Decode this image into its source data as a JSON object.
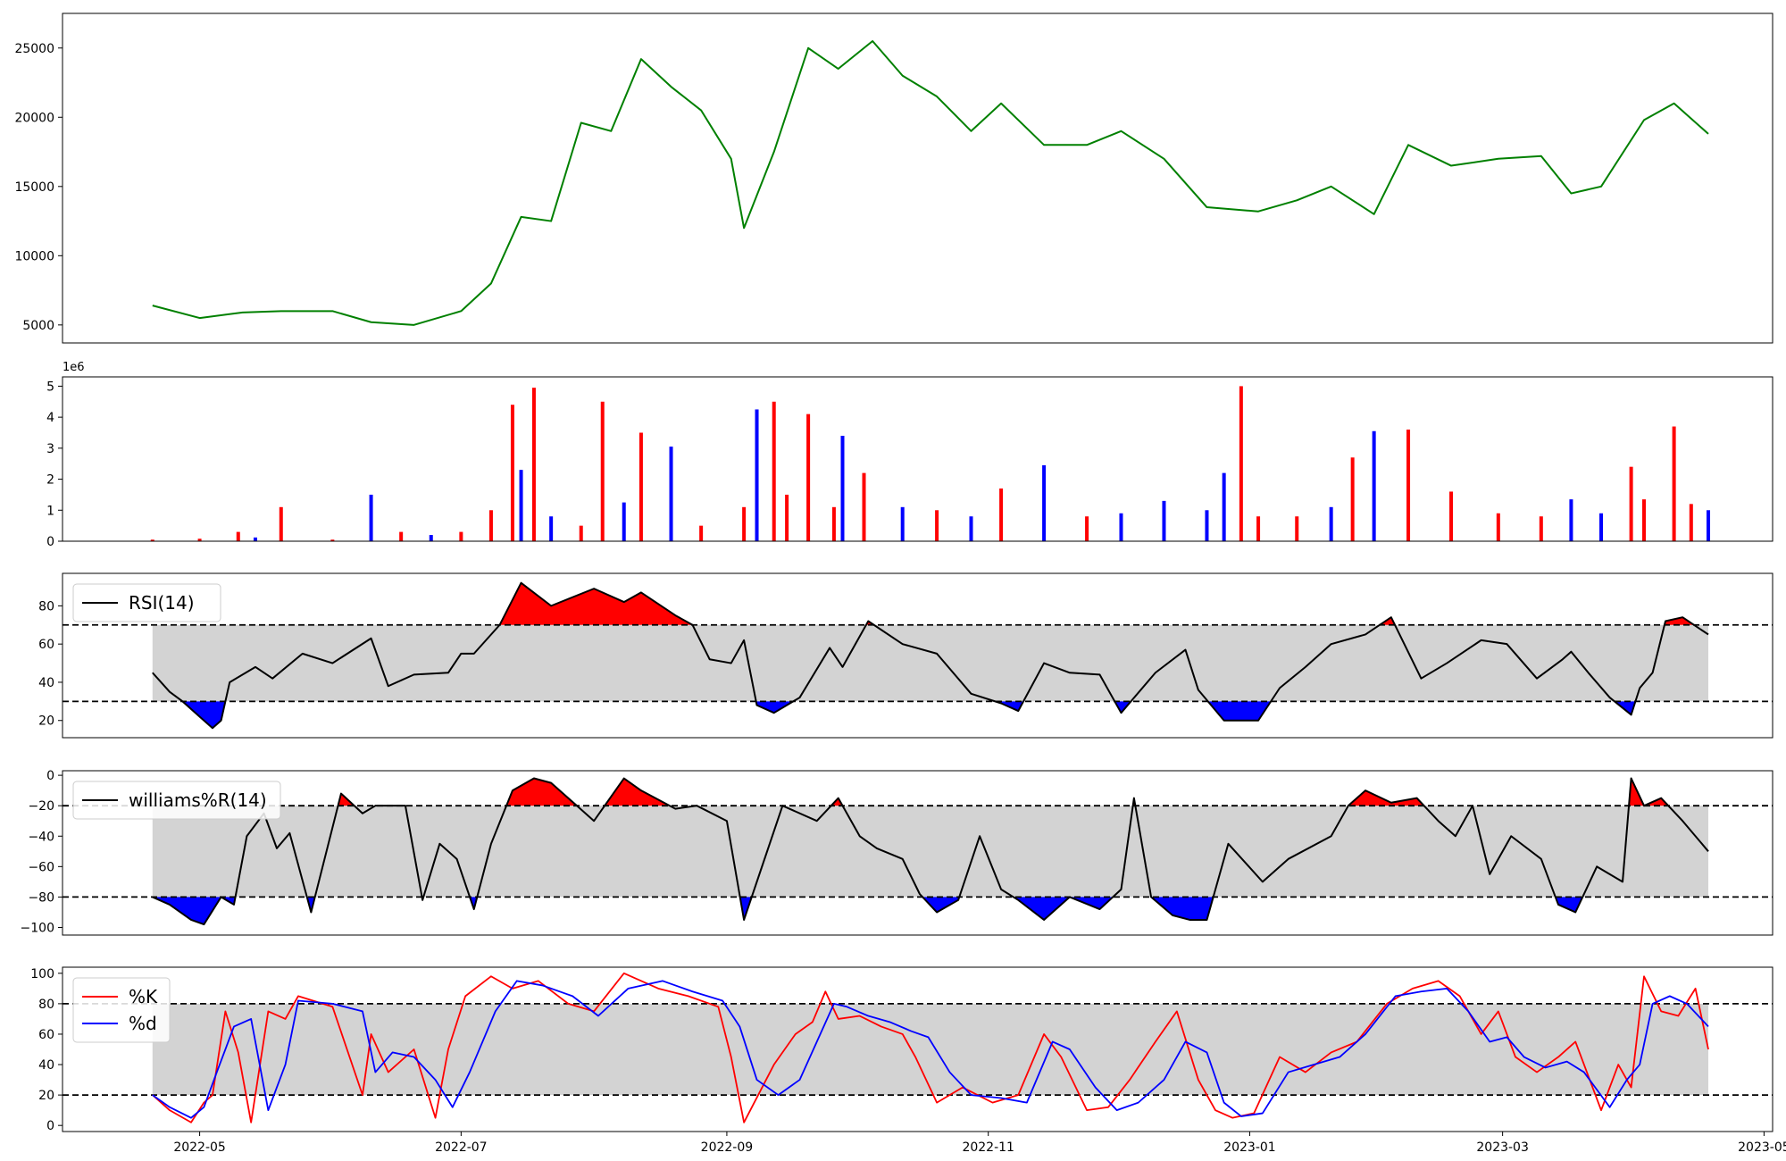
{
  "figure": {
    "background": "#ffffff",
    "thresh_fill": "#d3d3d3"
  },
  "chart_data": [
    {
      "id": "price",
      "type": "line",
      "color": "#008000",
      "ylim": [
        3700,
        27500
      ],
      "yticks": [
        5000,
        10000,
        15000,
        20000,
        25000
      ],
      "ytick_labels": [
        "5000",
        "10000",
        "15000",
        "20000",
        "25000"
      ],
      "x": [
        "2022-04-20",
        "2022-05-01",
        "2022-05-11",
        "2022-05-20",
        "2022-06-01",
        "2022-06-10",
        "2022-06-20",
        "2022-07-01",
        "2022-07-08",
        "2022-07-15",
        "2022-07-22",
        "2022-07-29",
        "2022-08-05",
        "2022-08-12",
        "2022-08-19",
        "2022-08-26",
        "2022-09-02",
        "2022-09-05",
        "2022-09-12",
        "2022-09-20",
        "2022-09-27",
        "2022-10-05",
        "2022-10-12",
        "2022-10-20",
        "2022-10-28",
        "2022-11-04",
        "2022-11-14",
        "2022-11-24",
        "2022-12-02",
        "2022-12-12",
        "2022-12-22",
        "2023-01-03",
        "2023-01-12",
        "2023-01-20",
        "2023-01-30",
        "2023-02-07",
        "2023-02-17",
        "2023-02-28",
        "2023-03-10",
        "2023-03-17",
        "2023-03-24",
        "2023-04-03",
        "2023-04-10",
        "2023-04-18"
      ],
      "y": [
        6400,
        5500,
        5900,
        6000,
        6000,
        5200,
        5000,
        6000,
        8000,
        12800,
        12500,
        19600,
        19000,
        24200,
        22200,
        20500,
        17000,
        12000,
        17500,
        25000,
        23500,
        25500,
        23000,
        21500,
        19000,
        21000,
        18000,
        18000,
        19000,
        17000,
        13500,
        13200,
        14000,
        15000,
        13000,
        18000,
        16500,
        17000,
        17200,
        14500,
        15000,
        19800,
        21000,
        18800
      ]
    },
    {
      "id": "volume",
      "type": "bar",
      "ylim": [
        0,
        5300000
      ],
      "yticks": [
        0,
        1000000,
        2000000,
        3000000,
        4000000,
        5000000
      ],
      "ytick_labels": [
        "0",
        "1",
        "2",
        "3",
        "4",
        "5"
      ],
      "offset_label": "1e6",
      "up_color": "#ff0000",
      "down_color": "#0000ff",
      "x": [
        "2022-04-20",
        "2022-05-01",
        "2022-05-10",
        "2022-05-14",
        "2022-05-20",
        "2022-06-01",
        "2022-06-10",
        "2022-06-17",
        "2022-06-24",
        "2022-07-01",
        "2022-07-08",
        "2022-07-13",
        "2022-07-15",
        "2022-07-18",
        "2022-07-22",
        "2022-07-29",
        "2022-08-03",
        "2022-08-08",
        "2022-08-12",
        "2022-08-19",
        "2022-08-26",
        "2022-09-05",
        "2022-09-08",
        "2022-09-12",
        "2022-09-15",
        "2022-09-20",
        "2022-09-26",
        "2022-09-28",
        "2022-10-03",
        "2022-10-12",
        "2022-10-20",
        "2022-10-28",
        "2022-11-04",
        "2022-11-14",
        "2022-11-24",
        "2022-12-02",
        "2022-12-12",
        "2022-12-22",
        "2022-12-26",
        "2022-12-30",
        "2023-01-03",
        "2023-01-12",
        "2023-01-20",
        "2023-01-25",
        "2023-01-30",
        "2023-02-07",
        "2023-02-17",
        "2023-02-28",
        "2023-03-10",
        "2023-03-17",
        "2023-03-24",
        "2023-03-31",
        "2023-04-03",
        "2023-04-10",
        "2023-04-14",
        "2023-04-18"
      ],
      "values": [
        50000,
        80000,
        300000,
        120000,
        1100000,
        50000,
        1500000,
        300000,
        200000,
        300000,
        1000000,
        4400000,
        2300000,
        4950000,
        800000,
        500000,
        4500000,
        1250000,
        3500000,
        3050000,
        500000,
        1100000,
        4250000,
        4500000,
        1500000,
        4100000,
        1100000,
        3400000,
        2200000,
        1100000,
        1000000,
        800000,
        1700000,
        2450000,
        800000,
        900000,
        1300000,
        1000000,
        2200000,
        5000000,
        800000,
        800000,
        1100000,
        2700000,
        3550000,
        3600000,
        1600000,
        900000,
        800000,
        1350000,
        900000,
        2400000,
        1350000,
        3700000,
        1200000,
        1000000
      ],
      "up": [
        true,
        true,
        true,
        false,
        true,
        true,
        false,
        true,
        false,
        true,
        true,
        true,
        false,
        true,
        false,
        true,
        true,
        false,
        true,
        false,
        true,
        true,
        false,
        true,
        true,
        true,
        true,
        false,
        true,
        false,
        true,
        false,
        true,
        false,
        true,
        false,
        false,
        false,
        false,
        true,
        true,
        true,
        false,
        true,
        false,
        true,
        true,
        true,
        true,
        false,
        false,
        true,
        true,
        true,
        true,
        false
      ]
    },
    {
      "id": "rsi",
      "type": "line",
      "color": "#000000",
      "legend": "RSI(14)",
      "ylim": [
        11,
        97
      ],
      "yticks": [
        20,
        40,
        60,
        80
      ],
      "ytick_labels": [
        "20",
        "40",
        "60",
        "80"
      ],
      "upper": 70,
      "lower": 30,
      "x": [
        "2022-04-20",
        "2022-04-24",
        "2022-04-27",
        "2022-05-01",
        "2022-05-04",
        "2022-05-06",
        "2022-05-08",
        "2022-05-14",
        "2022-05-18",
        "2022-05-25",
        "2022-06-01",
        "2022-06-10",
        "2022-06-14",
        "2022-06-20",
        "2022-06-28",
        "2022-07-01",
        "2022-07-04",
        "2022-07-10",
        "2022-07-15",
        "2022-07-22",
        "2022-08-01",
        "2022-08-08",
        "2022-08-12",
        "2022-08-20",
        "2022-08-24",
        "2022-08-28",
        "2022-09-02",
        "2022-09-05",
        "2022-09-08",
        "2022-09-12",
        "2022-09-18",
        "2022-09-25",
        "2022-09-28",
        "2022-10-04",
        "2022-10-12",
        "2022-10-20",
        "2022-10-28",
        "2022-11-04",
        "2022-11-08",
        "2022-11-14",
        "2022-11-20",
        "2022-11-27",
        "2022-12-02",
        "2022-12-10",
        "2022-12-17",
        "2022-12-20",
        "2022-12-26",
        "2023-01-03",
        "2023-01-08",
        "2023-01-14",
        "2023-01-20",
        "2023-01-28",
        "2023-02-03",
        "2023-02-10",
        "2023-02-16",
        "2023-02-24",
        "2023-03-02",
        "2023-03-09",
        "2023-03-15",
        "2023-03-17",
        "2023-03-21",
        "2023-03-26",
        "2023-03-31",
        "2023-04-02",
        "2023-04-05",
        "2023-04-08",
        "2023-04-12",
        "2023-04-18"
      ],
      "y": [
        45,
        35,
        30,
        22,
        16,
        20,
        40,
        48,
        42,
        55,
        50,
        63,
        38,
        44,
        45,
        55,
        55,
        70,
        92,
        80,
        89,
        82,
        87,
        75,
        70,
        52,
        50,
        62,
        28,
        24,
        32,
        58,
        48,
        72,
        60,
        55,
        34,
        29,
        25,
        50,
        45,
        44,
        24,
        45,
        57,
        36,
        20,
        20,
        37,
        48,
        60,
        65,
        74,
        42,
        50,
        62,
        60,
        42,
        52,
        56,
        45,
        32,
        23,
        37,
        45,
        72,
        74,
        65
      ]
    },
    {
      "id": "williams",
      "type": "line",
      "color": "#000000",
      "legend": "williams%R(14)",
      "ylim": [
        -105,
        3
      ],
      "yticks": [
        -100,
        -80,
        -60,
        -40,
        -20,
        0
      ],
      "ytick_labels": [
        "−100",
        "−80",
        "−60",
        "−40",
        "−20",
        "0"
      ],
      "upper": -20,
      "lower": -80,
      "x": [
        "2022-04-20",
        "2022-04-24",
        "2022-04-29",
        "2022-05-02",
        "2022-05-06",
        "2022-05-09",
        "2022-05-12",
        "2022-05-16",
        "2022-05-19",
        "2022-05-22",
        "2022-05-27",
        "2022-06-03",
        "2022-06-08",
        "2022-06-11",
        "2022-06-18",
        "2022-06-22",
        "2022-06-26",
        "2022-06-30",
        "2022-07-04",
        "2022-07-08",
        "2022-07-13",
        "2022-07-18",
        "2022-07-22",
        "2022-07-28",
        "2022-08-01",
        "2022-08-08",
        "2022-08-12",
        "2022-08-20",
        "2022-08-25",
        "2022-09-01",
        "2022-09-05",
        "2022-09-08",
        "2022-09-14",
        "2022-09-22",
        "2022-09-27",
        "2022-10-02",
        "2022-10-06",
        "2022-10-12",
        "2022-10-16",
        "2022-10-20",
        "2022-10-25",
        "2022-10-30",
        "2022-11-04",
        "2022-11-08",
        "2022-11-14",
        "2022-11-20",
        "2022-11-27",
        "2022-12-02",
        "2022-12-05",
        "2022-12-09",
        "2022-12-14",
        "2022-12-18",
        "2022-12-22",
        "2022-12-27",
        "2023-01-04",
        "2023-01-10",
        "2023-01-20",
        "2023-01-24",
        "2023-01-28",
        "2023-02-03",
        "2023-02-09",
        "2023-02-14",
        "2023-02-18",
        "2023-02-22",
        "2023-02-26",
        "2023-03-03",
        "2023-03-10",
        "2023-03-14",
        "2023-03-18",
        "2023-03-23",
        "2023-03-29",
        "2023-03-31",
        "2023-04-03",
        "2023-04-07",
        "2023-04-12",
        "2023-04-18"
      ],
      "y": [
        -80,
        -85,
        -95,
        -98,
        -80,
        -85,
        -40,
        -25,
        -48,
        -38,
        -90,
        -12,
        -25,
        -20,
        -20,
        -82,
        -45,
        -55,
        -88,
        -45,
        -10,
        -2,
        -5,
        -20,
        -30,
        -2,
        -10,
        -22,
        -20,
        -30,
        -95,
        -70,
        -20,
        -30,
        -15,
        -40,
        -48,
        -55,
        -78,
        -90,
        -82,
        -40,
        -75,
        -82,
        -95,
        -80,
        -88,
        -75,
        -15,
        -80,
        -92,
        -95,
        -95,
        -45,
        -70,
        -55,
        -40,
        -20,
        -10,
        -18,
        -15,
        -30,
        -40,
        -20,
        -65,
        -40,
        -55,
        -85,
        -90,
        -60,
        -70,
        -2,
        -20,
        -15,
        -30,
        -50
      ]
    },
    {
      "id": "stochastic",
      "type": "line",
      "ylim": [
        -4,
        104
      ],
      "yticks": [
        0,
        20,
        40,
        60,
        80,
        100
      ],
      "ytick_labels": [
        "0",
        "20",
        "40",
        "60",
        "80",
        "100"
      ],
      "upper": 80,
      "lower": 20,
      "series": [
        {
          "name": "%K",
          "color": "#ff0000",
          "x": [
            "2022-04-20",
            "2022-04-24",
            "2022-04-29",
            "2022-05-02",
            "2022-05-04",
            "2022-05-07",
            "2022-05-10",
            "2022-05-13",
            "2022-05-17",
            "2022-05-21",
            "2022-05-24",
            "2022-06-01",
            "2022-06-08",
            "2022-06-10",
            "2022-06-14",
            "2022-06-20",
            "2022-06-25",
            "2022-06-28",
            "2022-07-02",
            "2022-07-08",
            "2022-07-13",
            "2022-07-19",
            "2022-07-26",
            "2022-08-01",
            "2022-08-08",
            "2022-08-16",
            "2022-08-23",
            "2022-08-30",
            "2022-09-02",
            "2022-09-05",
            "2022-09-12",
            "2022-09-17",
            "2022-09-21",
            "2022-09-24",
            "2022-09-27",
            "2022-10-02",
            "2022-10-07",
            "2022-10-12",
            "2022-10-15",
            "2022-10-20",
            "2022-10-26",
            "2022-11-02",
            "2022-11-08",
            "2022-11-14",
            "2022-11-18",
            "2022-11-24",
            "2022-11-29",
            "2022-12-04",
            "2022-12-10",
            "2022-12-15",
            "2022-12-20",
            "2022-12-24",
            "2022-12-28",
            "2023-01-02",
            "2023-01-08",
            "2023-01-14",
            "2023-01-20",
            "2023-01-26",
            "2023-02-02",
            "2023-02-08",
            "2023-02-14",
            "2023-02-19",
            "2023-02-24",
            "2023-02-28",
            "2023-03-04",
            "2023-03-09",
            "2023-03-14",
            "2023-03-18",
            "2023-03-24",
            "2023-03-28",
            "2023-03-31",
            "2023-04-03",
            "2023-04-07",
            "2023-04-11",
            "2023-04-15",
            "2023-04-18"
          ],
          "y": [
            20,
            10,
            2,
            15,
            20,
            75,
            48,
            2,
            75,
            70,
            85,
            78,
            20,
            60,
            35,
            50,
            5,
            50,
            85,
            98,
            90,
            95,
            80,
            75,
            100,
            90,
            85,
            78,
            45,
            2,
            40,
            60,
            68,
            88,
            70,
            72,
            65,
            60,
            45,
            15,
            25,
            15,
            20,
            60,
            45,
            10,
            12,
            30,
            55,
            75,
            30,
            10,
            5,
            8,
            45,
            35,
            48,
            55,
            80,
            90,
            95,
            85,
            60,
            75,
            45,
            35,
            45,
            55,
            10,
            40,
            25,
            98,
            75,
            72,
            90,
            50
          ]
        },
        {
          "name": "%d",
          "color": "#0000ff",
          "x": [
            "2022-04-20",
            "2022-04-24",
            "2022-04-29",
            "2022-05-02",
            "2022-05-05",
            "2022-05-09",
            "2022-05-13",
            "2022-05-17",
            "2022-05-21",
            "2022-05-24",
            "2022-06-01",
            "2022-06-08",
            "2022-06-11",
            "2022-06-15",
            "2022-06-20",
            "2022-06-25",
            "2022-06-29",
            "2022-07-03",
            "2022-07-09",
            "2022-07-14",
            "2022-07-20",
            "2022-07-27",
            "2022-08-02",
            "2022-08-09",
            "2022-08-17",
            "2022-08-24",
            "2022-08-31",
            "2022-09-04",
            "2022-09-08",
            "2022-09-13",
            "2022-09-18",
            "2022-09-22",
            "2022-09-26",
            "2022-09-29",
            "2022-10-04",
            "2022-10-09",
            "2022-10-14",
            "2022-10-18",
            "2022-10-23",
            "2022-10-28",
            "2022-11-04",
            "2022-11-10",
            "2022-11-16",
            "2022-11-20",
            "2022-11-26",
            "2022-12-01",
            "2022-12-06",
            "2022-12-12",
            "2022-12-17",
            "2022-12-22",
            "2022-12-26",
            "2022-12-30",
            "2023-01-04",
            "2023-01-10",
            "2023-01-16",
            "2023-01-22",
            "2023-01-28",
            "2023-02-04",
            "2023-02-10",
            "2023-02-16",
            "2023-02-21",
            "2023-02-26",
            "2023-03-02",
            "2023-03-06",
            "2023-03-11",
            "2023-03-16",
            "2023-03-20",
            "2023-03-26",
            "2023-03-30",
            "2023-04-02",
            "2023-04-05",
            "2023-04-09",
            "2023-04-13",
            "2023-04-18"
          ],
          "y": [
            20,
            12,
            5,
            12,
            35,
            65,
            70,
            10,
            40,
            82,
            80,
            75,
            35,
            48,
            45,
            30,
            12,
            35,
            75,
            95,
            92,
            85,
            72,
            90,
            95,
            88,
            82,
            65,
            30,
            20,
            30,
            55,
            80,
            78,
            72,
            68,
            62,
            58,
            35,
            20,
            18,
            15,
            55,
            50,
            25,
            10,
            15,
            30,
            55,
            48,
            15,
            6,
            8,
            35,
            40,
            45,
            60,
            85,
            88,
            90,
            75,
            55,
            58,
            45,
            38,
            42,
            35,
            12,
            30,
            40,
            80,
            85,
            80,
            65
          ]
        }
      ]
    }
  ],
  "x_axis": {
    "min": "2022-03-30",
    "max": "2023-05-03",
    "ticks": [
      "2022-05-01",
      "2022-07-01",
      "2022-09-01",
      "2022-11-01",
      "2023-01-01",
      "2023-03-01",
      "2023-05-01"
    ],
    "tick_labels": [
      "2022-05",
      "2022-07",
      "2022-09",
      "2022-11",
      "2023-01",
      "2023-03",
      "2023-05"
    ]
  }
}
